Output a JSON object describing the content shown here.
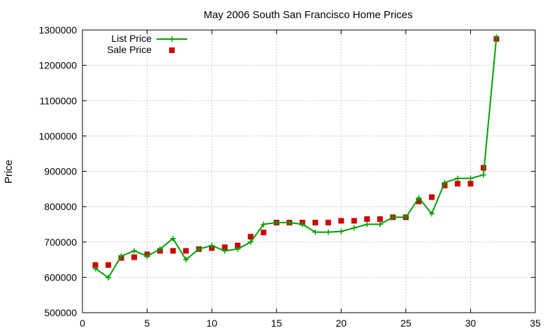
{
  "chart_data": {
    "type": "line",
    "title": "May 2006 South San Francisco Home Prices",
    "xlabel": "",
    "ylabel": "Price",
    "xlim": [
      0,
      35
    ],
    "ylim": [
      500000,
      1300000
    ],
    "x_ticks": [
      0,
      5,
      10,
      15,
      20,
      25,
      30,
      35
    ],
    "y_ticks": [
      500000,
      600000,
      700000,
      800000,
      900000,
      1000000,
      1100000,
      1200000,
      1300000
    ],
    "grid": true,
    "legend_position": "top-left",
    "series": [
      {
        "name": "List Price",
        "style": "line-with-plus-markers",
        "color": "#00a000",
        "x": [
          1,
          2,
          3,
          4,
          5,
          6,
          7,
          8,
          9,
          10,
          11,
          12,
          13,
          14,
          15,
          16,
          17,
          18,
          19,
          20,
          21,
          22,
          23,
          24,
          25,
          26,
          27,
          28,
          29,
          30,
          31,
          32
        ],
        "values": [
          625000,
          599000,
          660000,
          675000,
          660000,
          680000,
          710000,
          650000,
          680000,
          690000,
          675000,
          680000,
          700000,
          750000,
          755000,
          755000,
          750000,
          728000,
          728000,
          730000,
          740000,
          750000,
          750000,
          770000,
          770000,
          825000,
          780000,
          868000,
          880000,
          880000,
          890000,
          1280000
        ]
      },
      {
        "name": "Sale Price",
        "style": "square-markers",
        "color": "#cc0000",
        "x": [
          1,
          2,
          3,
          4,
          5,
          6,
          7,
          8,
          9,
          10,
          11,
          12,
          13,
          14,
          15,
          16,
          17,
          18,
          19,
          20,
          21,
          22,
          23,
          24,
          25,
          26,
          27,
          28,
          29,
          30,
          31,
          32
        ],
        "values": [
          635000,
          635000,
          655000,
          657000,
          665000,
          675000,
          675000,
          675000,
          680000,
          683000,
          685000,
          690000,
          715000,
          727000,
          755000,
          755000,
          755000,
          755000,
          755000,
          760000,
          760000,
          765000,
          765000,
          770000,
          770000,
          815000,
          827000,
          860000,
          865000,
          865000,
          910000,
          1275000
        ]
      }
    ]
  }
}
